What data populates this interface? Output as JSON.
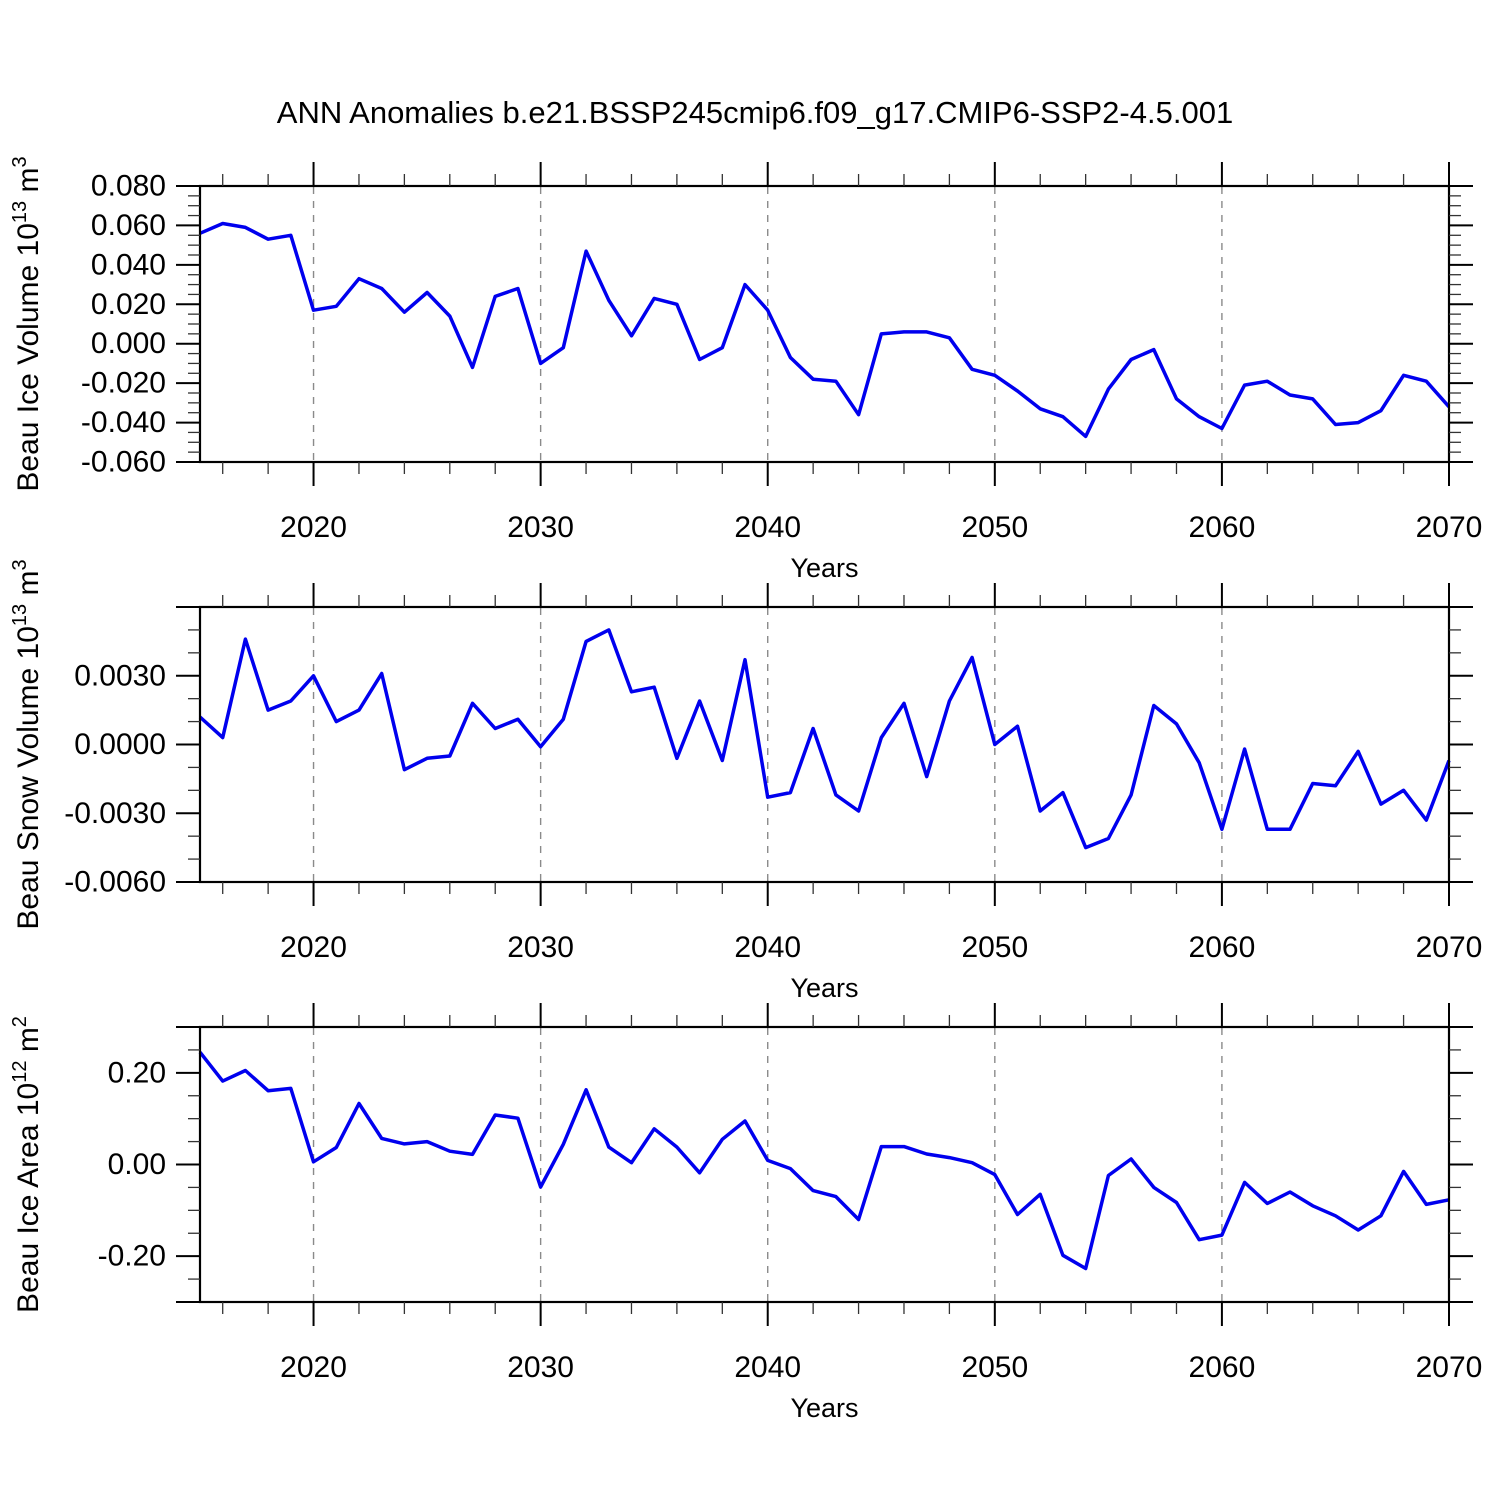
{
  "title": "ANN Anomalies b.e21.BSSP245cmip6.f09_g17.CMIP6-SSP2-4.5.001",
  "colors": {
    "line": "#0000ee",
    "frame": "#000000",
    "grid": "#8a8a8a",
    "minor_tick": "#333333"
  },
  "chart_data": [
    {
      "type": "line",
      "name": "beau-ice-volume",
      "ylabel_parts": [
        {
          "t": "Beau Ice Volume 10"
        },
        {
          "t": "13",
          "sup": true
        },
        {
          "t": " m"
        },
        {
          "t": "3",
          "sup": true
        }
      ],
      "xlabel": "Years",
      "xlim": [
        2015,
        2070
      ],
      "ylim": [
        -0.06,
        0.08
      ],
      "x_major": [
        {
          "v": 2020,
          "label": "2020"
        },
        {
          "v": 2030,
          "label": "2030"
        },
        {
          "v": 2040,
          "label": "2040"
        },
        {
          "v": 2050,
          "label": "2050"
        },
        {
          "v": 2060,
          "label": "2060"
        },
        {
          "v": 2070,
          "label": "2070"
        }
      ],
      "x_minor_step": 2,
      "grid_x": [
        2020,
        2030,
        2040,
        2050,
        2060
      ],
      "y_major": [
        {
          "v": 0.08,
          "label": "0.080"
        },
        {
          "v": 0.06,
          "label": "0.060"
        },
        {
          "v": 0.04,
          "label": "0.040"
        },
        {
          "v": 0.02,
          "label": "0.020"
        },
        {
          "v": 0.0,
          "label": "0.000"
        },
        {
          "v": -0.02,
          "label": "-0.020"
        },
        {
          "v": -0.04,
          "label": "-0.040"
        },
        {
          "v": -0.06,
          "label": "-0.060"
        }
      ],
      "y_minor_step": 0.005,
      "x": [
        2015,
        2016,
        2017,
        2018,
        2019,
        2020,
        2021,
        2022,
        2023,
        2024,
        2025,
        2026,
        2027,
        2028,
        2029,
        2030,
        2031,
        2032,
        2033,
        2034,
        2035,
        2036,
        2037,
        2038,
        2039,
        2040,
        2041,
        2042,
        2043,
        2044,
        2045,
        2046,
        2047,
        2048,
        2049,
        2050,
        2051,
        2052,
        2053,
        2054,
        2055,
        2056,
        2057,
        2058,
        2059,
        2060,
        2061,
        2062,
        2063,
        2064,
        2065,
        2066,
        2067,
        2068,
        2069,
        2070
      ],
      "values": [
        0.056,
        0.061,
        0.059,
        0.053,
        0.055,
        0.017,
        0.019,
        0.033,
        0.028,
        0.016,
        0.026,
        0.014,
        -0.012,
        0.024,
        0.028,
        -0.01,
        -0.002,
        0.047,
        0.022,
        0.004,
        0.023,
        0.02,
        -0.008,
        -0.002,
        0.03,
        0.017,
        -0.007,
        -0.018,
        -0.019,
        -0.036,
        0.005,
        0.006,
        0.006,
        0.003,
        -0.013,
        -0.016,
        -0.024,
        -0.033,
        -0.037,
        -0.047,
        -0.023,
        -0.008,
        -0.003,
        -0.028,
        -0.037,
        -0.043,
        -0.021,
        -0.019,
        -0.026,
        -0.028,
        -0.041,
        -0.04,
        -0.034,
        -0.016,
        -0.019,
        -0.032
      ]
    },
    {
      "type": "line",
      "name": "beau-snow-volume",
      "ylabel_parts": [
        {
          "t": "Beau Snow Volume 10"
        },
        {
          "t": "13",
          "sup": true
        },
        {
          "t": " m"
        },
        {
          "t": "3",
          "sup": true
        }
      ],
      "xlabel": "Years",
      "xlim": [
        2015,
        2070
      ],
      "ylim": [
        -0.006,
        0.006
      ],
      "x_major": [
        {
          "v": 2020,
          "label": "2020"
        },
        {
          "v": 2030,
          "label": "2030"
        },
        {
          "v": 2040,
          "label": "2040"
        },
        {
          "v": 2050,
          "label": "2050"
        },
        {
          "v": 2060,
          "label": "2060"
        },
        {
          "v": 2070,
          "label": "2070"
        }
      ],
      "x_minor_step": 2,
      "grid_x": [
        2020,
        2030,
        2040,
        2050,
        2060
      ],
      "y_major": [
        {
          "v": 0.006,
          "label": ""
        },
        {
          "v": 0.003,
          "label": "0.0030"
        },
        {
          "v": 0.0,
          "label": "0.0000"
        },
        {
          "v": -0.003,
          "label": "-0.0030"
        },
        {
          "v": -0.006,
          "label": "-0.0060"
        }
      ],
      "y_minor_step": 0.001,
      "x": [
        2015,
        2016,
        2017,
        2018,
        2019,
        2020,
        2021,
        2022,
        2023,
        2024,
        2025,
        2026,
        2027,
        2028,
        2029,
        2030,
        2031,
        2032,
        2033,
        2034,
        2035,
        2036,
        2037,
        2038,
        2039,
        2040,
        2041,
        2042,
        2043,
        2044,
        2045,
        2046,
        2047,
        2048,
        2049,
        2050,
        2051,
        2052,
        2053,
        2054,
        2055,
        2056,
        2057,
        2058,
        2059,
        2060,
        2061,
        2062,
        2063,
        2064,
        2065,
        2066,
        2067,
        2068,
        2069,
        2070
      ],
      "values": [
        0.0012,
        0.0003,
        0.0046,
        0.0015,
        0.0019,
        0.003,
        0.001,
        0.0015,
        0.0031,
        -0.0011,
        -0.0006,
        -0.0005,
        0.0018,
        0.0007,
        0.0011,
        -0.0001,
        0.0011,
        0.0045,
        0.005,
        0.0023,
        0.0025,
        -0.0006,
        0.0019,
        -0.0007,
        0.0037,
        -0.0023,
        -0.0021,
        0.0007,
        -0.0022,
        -0.0029,
        0.0003,
        0.0018,
        -0.0014,
        0.0019,
        0.0038,
        0.0,
        0.0008,
        -0.0029,
        -0.0021,
        -0.0045,
        -0.0041,
        -0.0022,
        0.0017,
        0.0009,
        -0.0008,
        -0.0037,
        -0.0002,
        -0.0037,
        -0.0037,
        -0.0017,
        -0.0018,
        -0.0003,
        -0.0026,
        -0.002,
        -0.0033,
        -0.0007
      ]
    },
    {
      "type": "line",
      "name": "beau-ice-area",
      "ylabel_parts": [
        {
          "t": "Beau Ice Area 10"
        },
        {
          "t": "12",
          "sup": true
        },
        {
          "t": " m"
        },
        {
          "t": "2",
          "sup": true
        }
      ],
      "xlabel": "Years",
      "xlim": [
        2015,
        2070
      ],
      "ylim": [
        -0.3,
        0.3
      ],
      "x_major": [
        {
          "v": 2020,
          "label": "2020"
        },
        {
          "v": 2030,
          "label": "2030"
        },
        {
          "v": 2040,
          "label": "2040"
        },
        {
          "v": 2050,
          "label": "2050"
        },
        {
          "v": 2060,
          "label": "2060"
        },
        {
          "v": 2070,
          "label": "2070"
        }
      ],
      "x_minor_step": 2,
      "grid_x": [
        2020,
        2030,
        2040,
        2050,
        2060
      ],
      "y_major": [
        {
          "v": 0.3,
          "label": ""
        },
        {
          "v": 0.2,
          "label": "0.20"
        },
        {
          "v": 0.0,
          "label": "0.00"
        },
        {
          "v": -0.2,
          "label": "-0.20"
        },
        {
          "v": -0.3,
          "label": ""
        }
      ],
      "y_minor_step": 0.05,
      "x": [
        2015,
        2016,
        2017,
        2018,
        2019,
        2020,
        2021,
        2022,
        2023,
        2024,
        2025,
        2026,
        2027,
        2028,
        2029,
        2030,
        2031,
        2032,
        2033,
        2034,
        2035,
        2036,
        2037,
        2038,
        2039,
        2040,
        2041,
        2042,
        2043,
        2044,
        2045,
        2046,
        2047,
        2048,
        2049,
        2050,
        2051,
        2052,
        2053,
        2054,
        2055,
        2056,
        2057,
        2058,
        2059,
        2060,
        2061,
        2062,
        2063,
        2064,
        2065,
        2066,
        2067,
        2068,
        2069,
        2070
      ],
      "values": [
        0.245,
        0.182,
        0.205,
        0.161,
        0.166,
        0.006,
        0.037,
        0.133,
        0.057,
        0.045,
        0.05,
        0.029,
        0.022,
        0.108,
        0.101,
        -0.049,
        0.044,
        0.163,
        0.038,
        0.004,
        0.078,
        0.038,
        -0.018,
        0.055,
        0.095,
        0.009,
        -0.009,
        -0.057,
        -0.07,
        -0.12,
        0.039,
        0.039,
        0.023,
        0.015,
        0.004,
        -0.022,
        -0.109,
        -0.065,
        -0.198,
        -0.227,
        -0.024,
        0.012,
        -0.05,
        -0.083,
        -0.164,
        -0.154,
        -0.039,
        -0.085,
        -0.06,
        -0.09,
        -0.112,
        -0.143,
        -0.112,
        -0.015,
        -0.087,
        -0.077
      ]
    }
  ]
}
